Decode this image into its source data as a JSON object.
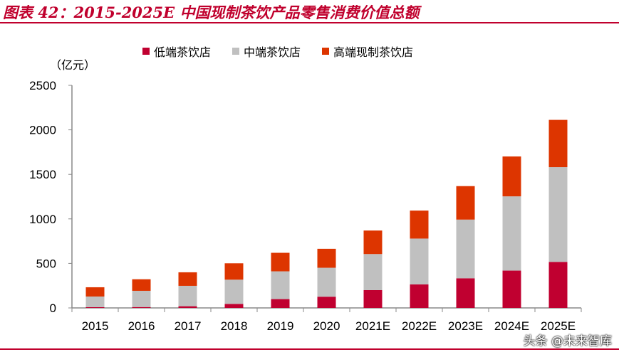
{
  "title": "图表 42：2015-2025E 中国现制茶饮产品零售消费价值总额",
  "watermark": "头条 @未来智库",
  "chart_data": {
    "type": "bar",
    "stacked": true,
    "title": "图表 42：2015-2025E 中国现制茶饮产品零售消费价值总额",
    "ylabel": "（亿元）",
    "xlabel": "",
    "ylim": [
      0,
      2500
    ],
    "yticks": [
      0,
      500,
      1000,
      1500,
      2000,
      2500
    ],
    "grid": false,
    "legend_position": "top",
    "categories": [
      "2015",
      "2016",
      "2017",
      "2018",
      "2019",
      "2020",
      "2021E",
      "2022E",
      "2023E",
      "2024E",
      "2025E"
    ],
    "series": [
      {
        "name": "低端茶饮店",
        "color": "#c00030",
        "values": [
          8,
          10,
          19,
          45,
          99,
          126,
          200,
          264,
          333,
          419,
          517
        ]
      },
      {
        "name": "中端茶饮店",
        "color": "#c0c0c0",
        "values": [
          120,
          182,
          229,
          272,
          312,
          325,
          405,
          515,
          659,
          834,
          1064
        ]
      },
      {
        "name": "高端现制茶饮店",
        "color": "#dd3500",
        "values": [
          104,
          130,
          152,
          184,
          208,
          213,
          264,
          314,
          376,
          448,
          531
        ]
      }
    ]
  }
}
